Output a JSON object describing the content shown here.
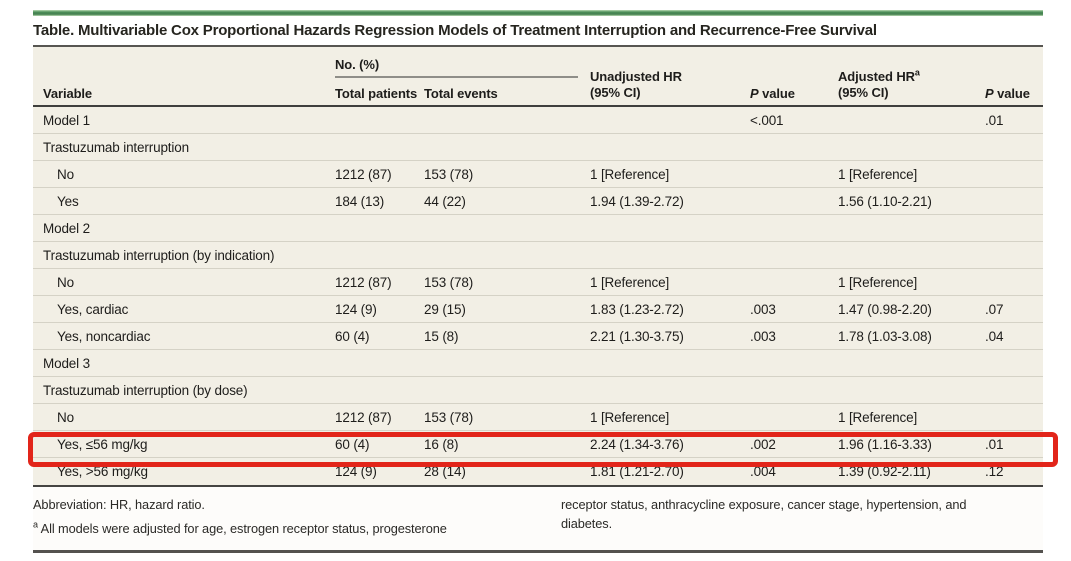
{
  "title": "Table. Multivariable Cox Proportional Hazards Regression Models of Treatment Interruption and Recurrence-Free Survival",
  "colors": {
    "accent_green": "#4c8e58",
    "highlight_red": "#e2251a",
    "table_cream": "#f2efe5"
  },
  "header": {
    "variable": "Variable",
    "no_pct_group": "No. (%)",
    "total_patients": "Total patients",
    "total_events": "Total events",
    "unadjusted_line1": "Unadjusted HR",
    "unadjusted_line2": "(95% CI)",
    "adjusted_line1": "Adjusted HR",
    "adjusted_sup": "a",
    "adjusted_line2": "(95% CI)",
    "p_italic": "P",
    "p_rest": " value"
  },
  "rows": [
    {
      "variable": "Model 1",
      "indent": 0,
      "patients": "",
      "events": "",
      "uhr": "",
      "p1": "<.001",
      "ahr": "",
      "p2": ".01",
      "highlighted": false
    },
    {
      "variable": "Trastuzumab interruption",
      "indent": 0,
      "patients": "",
      "events": "",
      "uhr": "",
      "p1": "",
      "ahr": "",
      "p2": "",
      "highlighted": false
    },
    {
      "variable": "No",
      "indent": 1,
      "patients": "1212 (87)",
      "events": "153 (78)",
      "uhr": "1 [Reference]",
      "p1": "",
      "ahr": "1 [Reference]",
      "p2": "",
      "highlighted": false
    },
    {
      "variable": "Yes",
      "indent": 1,
      "patients": "184 (13)",
      "events": "44 (22)",
      "uhr": "1.94 (1.39-2.72)",
      "p1": "",
      "ahr": "1.56 (1.10-2.21)",
      "p2": "",
      "highlighted": false
    },
    {
      "variable": "Model 2",
      "indent": 0,
      "patients": "",
      "events": "",
      "uhr": "",
      "p1": "",
      "ahr": "",
      "p2": "",
      "highlighted": false
    },
    {
      "variable": "Trastuzumab interruption (by indication)",
      "indent": 0,
      "patients": "",
      "events": "",
      "uhr": "",
      "p1": "",
      "ahr": "",
      "p2": "",
      "highlighted": false
    },
    {
      "variable": "No",
      "indent": 1,
      "patients": "1212 (87)",
      "events": "153 (78)",
      "uhr": "1 [Reference]",
      "p1": "",
      "ahr": "1 [Reference]",
      "p2": "",
      "highlighted": false
    },
    {
      "variable": "Yes, cardiac",
      "indent": 1,
      "patients": "124 (9)",
      "events": "29 (15)",
      "uhr": "1.83 (1.23-2.72)",
      "p1": ".003",
      "ahr": "1.47 (0.98-2.20)",
      "p2": ".07",
      "highlighted": false
    },
    {
      "variable": "Yes, noncardiac",
      "indent": 1,
      "patients": "60 (4)",
      "events": "15 (8)",
      "uhr": "2.21 (1.30-3.75)",
      "p1": ".003",
      "ahr": "1.78 (1.03-3.08)",
      "p2": ".04",
      "highlighted": false
    },
    {
      "variable": "Model 3",
      "indent": 0,
      "patients": "",
      "events": "",
      "uhr": "",
      "p1": "",
      "ahr": "",
      "p2": "",
      "highlighted": false
    },
    {
      "variable": "Trastuzumab interruption (by dose)",
      "indent": 0,
      "patients": "",
      "events": "",
      "uhr": "",
      "p1": "",
      "ahr": "",
      "p2": "",
      "highlighted": false
    },
    {
      "variable": "No",
      "indent": 1,
      "patients": "1212 (87)",
      "events": "153 (78)",
      "uhr": "1 [Reference]",
      "p1": "",
      "ahr": "1 [Reference]",
      "p2": "",
      "highlighted": false
    },
    {
      "variable": "Yes, ≤56 mg/kg",
      "indent": 1,
      "patients": "60 (4)",
      "events": "16 (8)",
      "uhr": "2.24 (1.34-3.76)",
      "p1": ".002",
      "ahr": "1.96 (1.16-3.33)",
      "p2": ".01",
      "highlighted": true
    },
    {
      "variable": "Yes, >56 mg/kg",
      "indent": 1,
      "patients": "124 (9)",
      "events": "28 (14)",
      "uhr": "1.81 (1.21-2.70)",
      "p1": ".004",
      "ahr": "1.39 (0.92-2.11)",
      "p2": ".12",
      "highlighted": false
    }
  ],
  "footnotes": {
    "abbreviation": "Abbreviation: HR, hazard ratio.",
    "fn_sup": "a",
    "fn_left_text": " All models were adjusted for age, estrogen receptor status, progesterone",
    "fn_right_text": "receptor status, anthracycline exposure, cancer stage, hypertension, and diabetes."
  }
}
